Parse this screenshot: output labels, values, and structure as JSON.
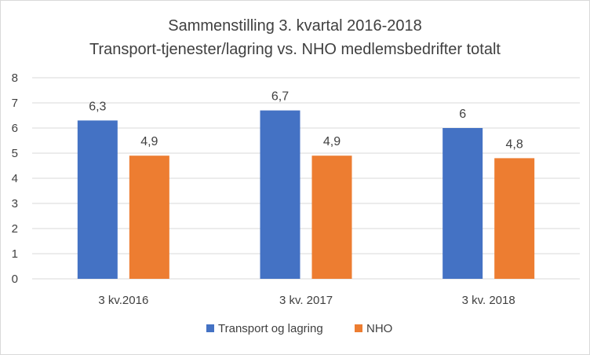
{
  "chart_data": {
    "type": "bar",
    "title_lines": [
      "Sammenstilling 3. kvartal 2016-2018",
      "Transport-tjenester/lagring vs. NHO medlemsbedrifter totalt"
    ],
    "categories": [
      "3 kv.2016",
      "3 kv. 2017",
      "3 kv. 2018"
    ],
    "series": [
      {
        "name": "Transport og lagring",
        "values": [
          6.3,
          6.7,
          6
        ],
        "labels": [
          "6,3",
          "6,7",
          "6"
        ],
        "color": "#4472c4"
      },
      {
        "name": "NHO",
        "values": [
          4.9,
          4.9,
          4.8
        ],
        "labels": [
          "4,9",
          "4,9",
          "4,8"
        ],
        "color": "#ed7d31"
      }
    ],
    "ylim": [
      0,
      8
    ],
    "yticks": [
      0,
      1,
      2,
      3,
      4,
      5,
      6,
      7,
      8
    ],
    "ytick_labels": [
      "0",
      "1",
      "2",
      "3",
      "4",
      "5",
      "6",
      "7",
      "8"
    ],
    "grid": true,
    "gridline_color": "#d9d9d9",
    "legend_position": "bottom"
  }
}
